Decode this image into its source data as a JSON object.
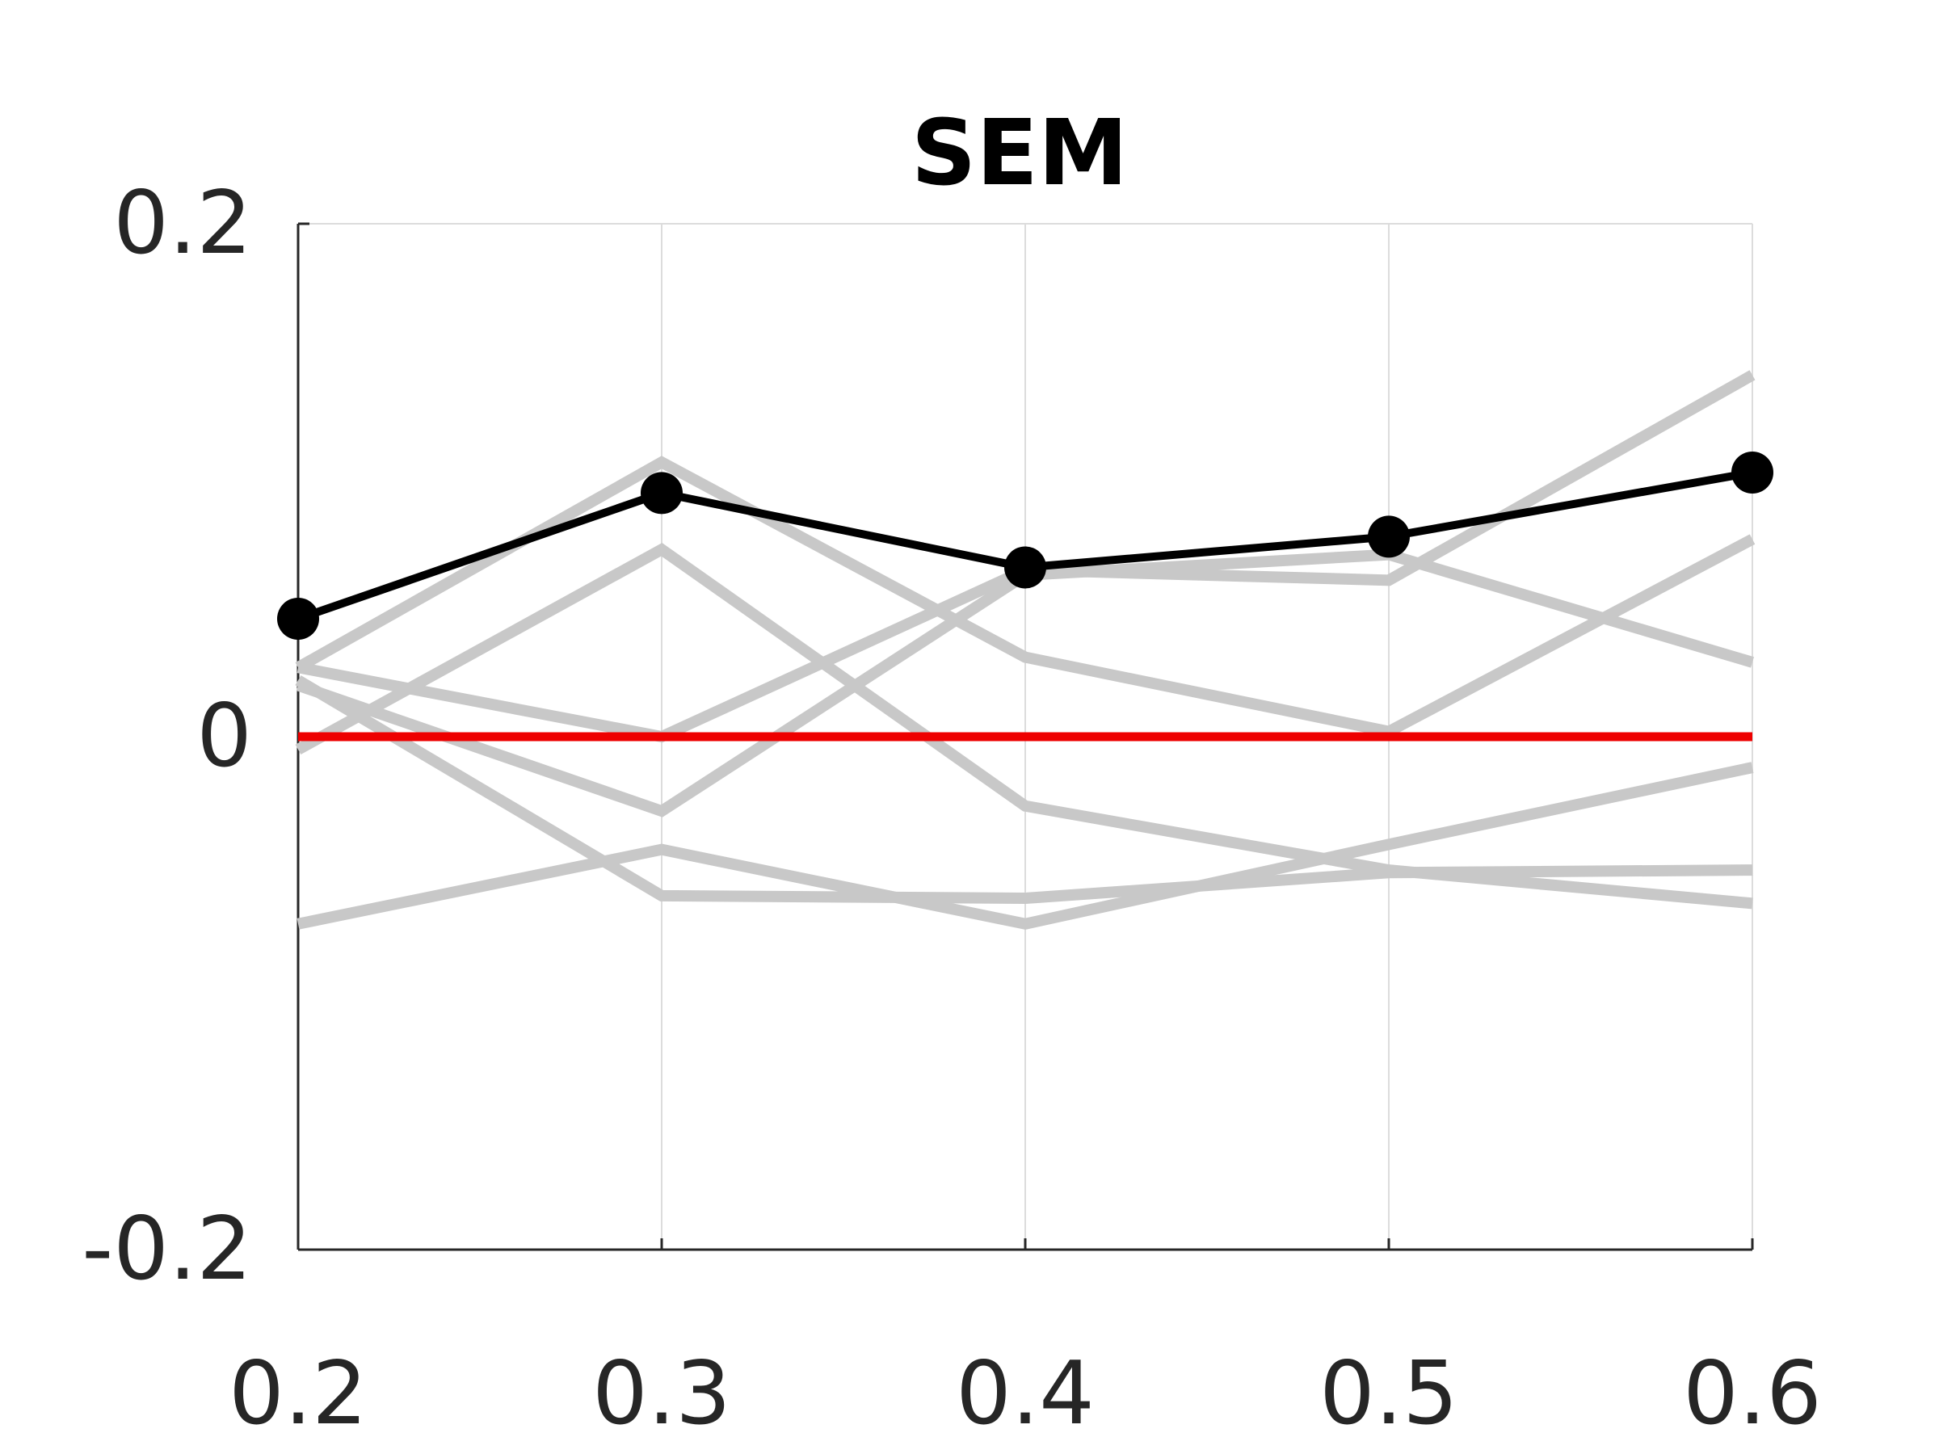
{
  "chart_data": {
    "type": "line",
    "title": "SEM",
    "xlabel": "",
    "ylabel": "",
    "x": [
      0.2,
      0.3,
      0.4,
      0.5,
      0.6
    ],
    "x_tick_labels": [
      "0.2",
      "0.3",
      "0.4",
      "0.5",
      "0.6"
    ],
    "y_tick_labels": [
      "0.2",
      "0",
      "-0.2"
    ],
    "y_ticks": [
      0.2,
      0,
      -0.2
    ],
    "xlim": [
      0.2,
      0.6
    ],
    "ylim": [
      -0.2,
      0.2
    ],
    "grid": "vertical",
    "legend": "none",
    "background_series": [
      {
        "values": [
          0.027,
          0.107,
          0.031,
          0.002,
          0.077
        ]
      },
      {
        "values": [
          0.027,
          0.0,
          0.065,
          0.061,
          0.141
        ]
      },
      {
        "values": [
          -0.005,
          0.073,
          -0.027,
          -0.052,
          -0.065
        ]
      },
      {
        "values": [
          0.02,
          -0.029,
          0.063,
          0.071,
          0.029
        ]
      },
      {
        "values": [
          0.022,
          -0.062,
          -0.063,
          -0.053,
          -0.052
        ]
      },
      {
        "values": [
          -0.073,
          -0.044,
          -0.073,
          -0.042,
          -0.012
        ]
      }
    ],
    "highlight_series": {
      "values": [
        0.046,
        0.095,
        0.066,
        0.078,
        0.103
      ],
      "markers": true
    },
    "reference_line": {
      "y": 0
    }
  },
  "colors": {
    "background_series": "#c8c8c8",
    "highlight_series": "#000000",
    "reference_line": "#ee0000",
    "axis": "#262626",
    "grid": "#dcdcdc"
  }
}
